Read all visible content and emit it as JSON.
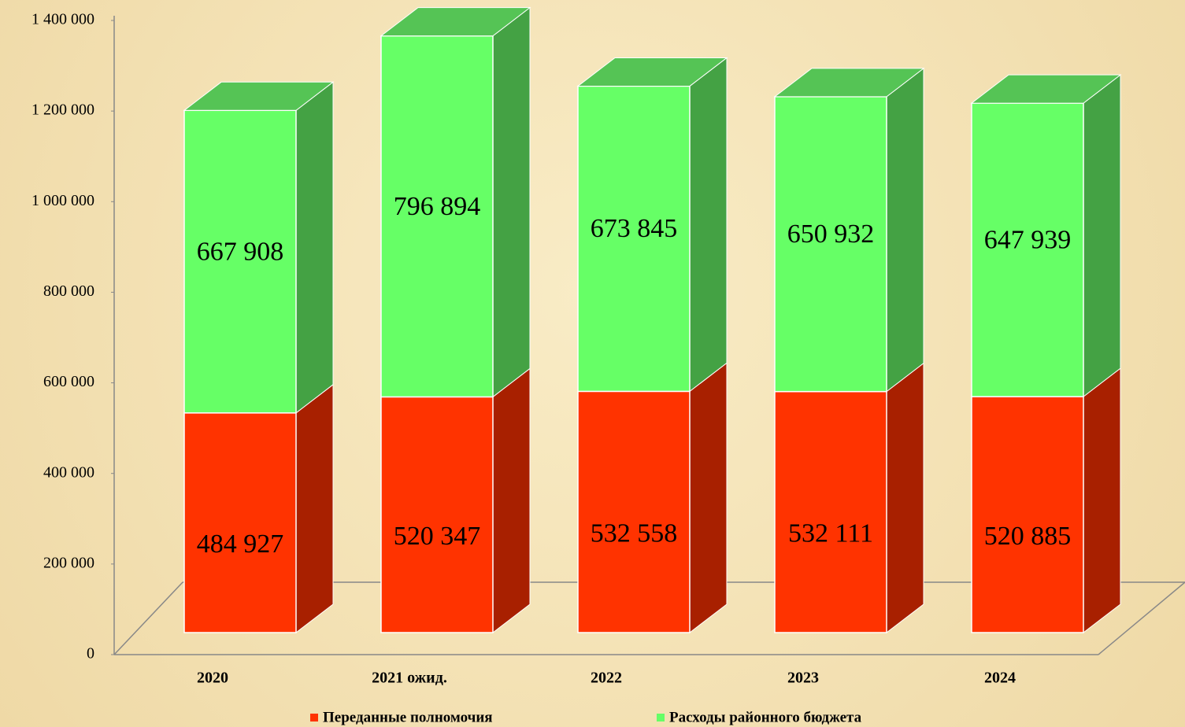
{
  "chart_data": {
    "type": "bar3d_stacked",
    "categories": [
      "2020",
      "2021 ожид.",
      "2022",
      "2023",
      "2024"
    ],
    "series": [
      {
        "name": "Переданные полномочия",
        "color": "#ff3300",
        "side_color": "#a82000",
        "values": [
          484927,
          520347,
          532558,
          532111,
          520885
        ],
        "value_labels": [
          "484 927",
          "520 347",
          "532 558",
          "532 111",
          "520 885"
        ]
      },
      {
        "name": "Расходы районного бюджета",
        "color": "#66ff66",
        "side_color": "#44a244",
        "values": [
          667908,
          796894,
          673845,
          650932,
          647939
        ],
        "value_labels": [
          "667 908",
          "796 894",
          "673 845",
          "650 932",
          "647 939"
        ]
      }
    ],
    "top_color": "#55c455",
    "ylim": [
      0,
      1400000
    ],
    "yticks": [
      0,
      {
        "value": 200000,
        "label": "200 000"
      },
      {
        "value": 400000,
        "label": "400 000"
      },
      {
        "value": 600000,
        "label": "600 000"
      },
      {
        "value": 800000,
        "label": "800 000"
      },
      {
        "value": 1000000,
        "label": "1 000 000"
      },
      {
        "value": 1200000,
        "label": "1 200 000"
      },
      {
        "value": 1400000,
        "label": "1 400 000"
      }
    ],
    "legend": "bottom"
  }
}
